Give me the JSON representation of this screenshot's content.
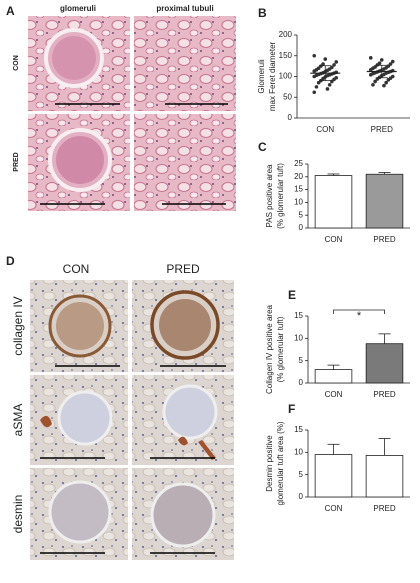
{
  "figure": {
    "panel_a": {
      "label": "A",
      "columns": [
        "glomeruli",
        "proximal tubuli"
      ],
      "rows": [
        "CON",
        "PRED"
      ]
    },
    "panel_d": {
      "label": "D",
      "columns": [
        "CON",
        "PRED"
      ],
      "rows": [
        "collagen IV",
        "aSMA",
        "desmin"
      ]
    }
  },
  "chart_data": [
    {
      "type": "strip",
      "panel": "B",
      "ylabel": [
        "Glomeruli",
        "max Feret diameter"
      ],
      "categories": [
        "CON",
        "PRED"
      ],
      "series": [
        {
          "name": "CON",
          "color": "#333333",
          "mean": 108,
          "sd": 18,
          "values": [
            150,
            142,
            135,
            130,
            128,
            125,
            122,
            120,
            118,
            116,
            115,
            113,
            112,
            110,
            109,
            108,
            107,
            106,
            105,
            104,
            103,
            102,
            100,
            99,
            97,
            95,
            93,
            90,
            88,
            85,
            80,
            75,
            70,
            62
          ]
        },
        {
          "name": "PRED",
          "color": "#333333",
          "mean": 112,
          "sd": 15,
          "values": [
            145,
            140,
            136,
            132,
            130,
            128,
            125,
            123,
            121,
            120,
            118,
            116,
            115,
            114,
            113,
            112,
            111,
            110,
            109,
            108,
            107,
            105,
            104,
            102,
            100,
            98,
            96,
            94,
            92,
            88,
            85,
            80,
            78
          ]
        }
      ],
      "ylim": [
        0,
        200
      ],
      "yticks": [
        0,
        50,
        100,
        150,
        200
      ]
    },
    {
      "type": "bar",
      "panel": "C",
      "ylabel": [
        "PAS positive area",
        "(% glomerular tuft)"
      ],
      "categories": [
        "CON",
        "PRED"
      ],
      "values": [
        20.5,
        21
      ],
      "errors": [
        0.6,
        0.7
      ],
      "colors": [
        "#ffffff",
        "#9a9a9a"
      ],
      "ylim": [
        0,
        25
      ],
      "yticks": [
        0,
        5,
        10,
        15,
        20,
        25
      ]
    },
    {
      "type": "bar",
      "panel": "E",
      "ylabel": [
        "Collagen IV positive area",
        "(% glomerular tuft)"
      ],
      "categories": [
        "CON",
        "PRED"
      ],
      "values": [
        3,
        8.8
      ],
      "errors": [
        1,
        2.2
      ],
      "colors": [
        "#ffffff",
        "#7a7a7a"
      ],
      "annotation": "*",
      "ylim": [
        0,
        15
      ],
      "yticks": [
        0,
        5,
        10,
        15
      ]
    },
    {
      "type": "bar",
      "panel": "F",
      "ylabel": [
        "Desmin positive",
        "glomerular tuft area (%)"
      ],
      "categories": [
        "CON",
        "PRED"
      ],
      "values": [
        9.5,
        9.3
      ],
      "errors": [
        2.3,
        3.8
      ],
      "colors": [
        "#ffffff",
        "#ffffff"
      ],
      "ylim": [
        0,
        15
      ],
      "yticks": [
        0,
        5,
        10,
        15
      ]
    }
  ]
}
